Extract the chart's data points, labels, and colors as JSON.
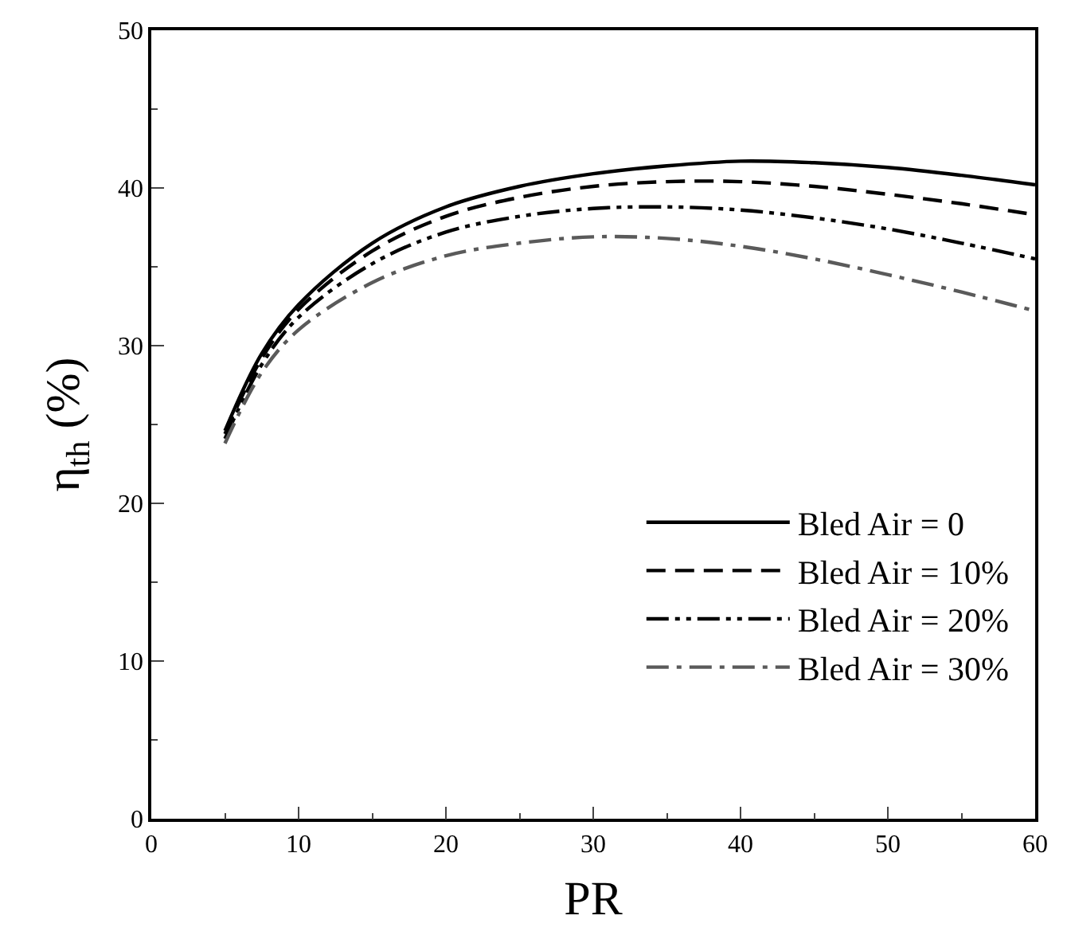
{
  "chart_data": {
    "type": "line",
    "xlabel": "PR",
    "ylabel": "η$_{th}$ (%)",
    "x": [
      5,
      7.5,
      10,
      15,
      20,
      25,
      30,
      35,
      40,
      45,
      50,
      55,
      60
    ],
    "series": [
      {
        "name": "Bled Air = 0",
        "color": "#000000",
        "line_style": "solid",
        "values": [
          24.6,
          29.5,
          32.6,
          36.5,
          38.8,
          40.1,
          40.9,
          41.4,
          41.7,
          41.6,
          41.3,
          40.8,
          40.2
        ]
      },
      {
        "name": "Bled Air = 10%",
        "color": "#000000",
        "line_style": "dashed",
        "values": [
          24.4,
          29.2,
          32.3,
          36.0,
          38.2,
          39.4,
          40.1,
          40.4,
          40.4,
          40.1,
          39.6,
          39.0,
          38.3
        ]
      },
      {
        "name": "Bled Air = 20%",
        "color": "#000000",
        "line_style": "dashdotdot",
        "values": [
          24.1,
          28.8,
          31.8,
          35.2,
          37.2,
          38.2,
          38.7,
          38.8,
          38.6,
          38.1,
          37.4,
          36.5,
          35.5
        ]
      },
      {
        "name": "Bled Air = 30%",
        "color": "#5a5a5a",
        "line_style": "dashdot",
        "values": [
          23.8,
          28.3,
          31.0,
          34.0,
          35.7,
          36.5,
          36.9,
          36.8,
          36.3,
          35.5,
          34.5,
          33.4,
          32.2
        ]
      }
    ],
    "xlim": [
      0,
      60
    ],
    "xticks": [
      0,
      10,
      20,
      30,
      40,
      50,
      60
    ],
    "ylim": [
      0,
      50
    ],
    "yticks": [
      0,
      10,
      20,
      30,
      40,
      50
    ],
    "legend": "bottom right",
    "marker": "none"
  }
}
